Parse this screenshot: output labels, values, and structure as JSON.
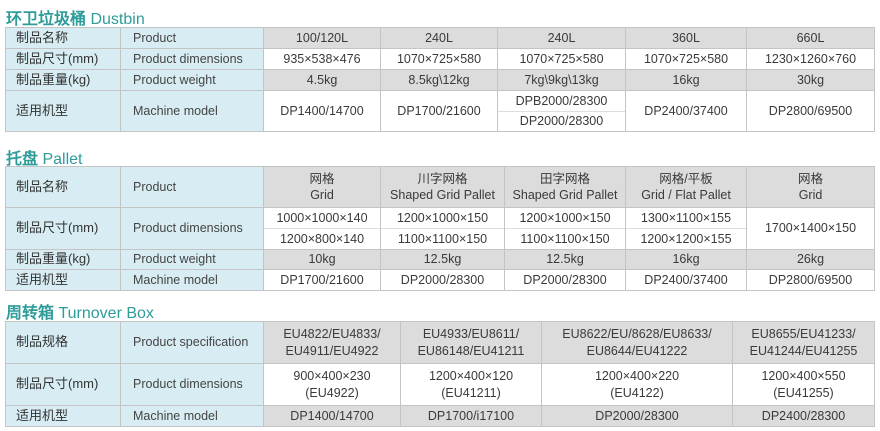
{
  "sections": [
    {
      "title_zh": "环卫垃圾桶",
      "title_en": "Dustbin",
      "rows": [
        {
          "zh": "制品名称",
          "en": "Product",
          "cells": [
            {
              "lines": [
                "100/120L"
              ]
            },
            {
              "lines": [
                "240L"
              ]
            },
            {
              "lines": [
                "240L"
              ]
            },
            {
              "lines": [
                "360L"
              ]
            },
            {
              "lines": [
                "660L"
              ]
            }
          ]
        },
        {
          "zh": "制品尺寸(mm)",
          "en": "Product dimensions",
          "cells": [
            {
              "lines": [
                "935×538×476"
              ]
            },
            {
              "lines": [
                "1070×725×580"
              ]
            },
            {
              "lines": [
                "1070×725×580"
              ]
            },
            {
              "lines": [
                "1070×725×580"
              ]
            },
            {
              "lines": [
                "1230×1260×760"
              ]
            }
          ]
        },
        {
          "zh": "制品重量(kg)",
          "en": "Product weight",
          "cells": [
            {
              "lines": [
                "4.5kg"
              ]
            },
            {
              "lines": [
                "8.5kg\\12kg"
              ]
            },
            {
              "lines": [
                "7kg\\9kg\\13kg"
              ]
            },
            {
              "lines": [
                "16kg"
              ]
            },
            {
              "lines": [
                "30kg"
              ]
            }
          ]
        },
        {
          "zh": "适用机型",
          "en": "Machine model",
          "cells": [
            {
              "lines": [
                "DP1400/14700"
              ]
            },
            {
              "lines": [
                "DP1700/21600"
              ]
            },
            {
              "lines": [
                "DPB2000/28300",
                "DP2000/28300"
              ],
              "divided": true
            },
            {
              "lines": [
                "DP2400/37400"
              ]
            },
            {
              "lines": [
                "DP2800/69500"
              ]
            }
          ]
        }
      ]
    },
    {
      "title_zh": "托盘",
      "title_en": "Pallet",
      "rows": [
        {
          "zh": "制品名称",
          "en": "Product",
          "cells": [
            {
              "lines": [
                "网格",
                "Grid"
              ]
            },
            {
              "lines": [
                "川字网格",
                "Shaped Grid Pallet"
              ]
            },
            {
              "lines": [
                "田字网格",
                "Shaped Grid Pallet"
              ]
            },
            {
              "lines": [
                "网格/平板",
                "Grid / Flat Pallet"
              ]
            },
            {
              "lines": [
                "网格",
                "Grid"
              ]
            }
          ]
        },
        {
          "zh": "制品尺寸(mm)",
          "en": "Product dimensions",
          "cells": [
            {
              "lines": [
                "1000×1000×140",
                "1200×800×140"
              ],
              "divided": true
            },
            {
              "lines": [
                "1200×1000×150",
                "1100×1100×150"
              ],
              "divided": true
            },
            {
              "lines": [
                "1200×1000×150",
                "1100×1100×150"
              ],
              "divided": true
            },
            {
              "lines": [
                "1300×1100×155",
                "1200×1200×155"
              ],
              "divided": true
            },
            {
              "lines": [
                "1700×1400×150"
              ]
            }
          ]
        },
        {
          "zh": "制品重量(kg)",
          "en": "Product weight",
          "cells": [
            {
              "lines": [
                "10kg"
              ]
            },
            {
              "lines": [
                "12.5kg"
              ]
            },
            {
              "lines": [
                "12.5kg"
              ]
            },
            {
              "lines": [
                "16kg"
              ]
            },
            {
              "lines": [
                "26kg"
              ]
            }
          ]
        },
        {
          "zh": "适用机型",
          "en": "Machine model",
          "cells": [
            {
              "lines": [
                "DP1700/21600"
              ]
            },
            {
              "lines": [
                "DP2000/28300"
              ]
            },
            {
              "lines": [
                "DP2000/28300"
              ]
            },
            {
              "lines": [
                "DP2400/37400"
              ]
            },
            {
              "lines": [
                "DP2800/69500"
              ]
            }
          ]
        }
      ]
    },
    {
      "title_zh": "周转箱",
      "title_en": "Turnover Box",
      "rows": [
        {
          "zh": "制品规格",
          "en": "Product specification",
          "cells": [
            {
              "lines": [
                "EU4822/EU4833/",
                "EU4911/EU4922"
              ]
            },
            {
              "lines": [
                "EU4933/EU8611/",
                "EU86148/EU41211"
              ]
            },
            {
              "lines": [
                "EU8622/EU/8628/EU8633/",
                "EU8644/EU41222"
              ]
            },
            {
              "lines": [
                "EU8655/EU41233/",
                "EU41244/EU41255"
              ]
            }
          ]
        },
        {
          "zh": "制品尺寸(mm)",
          "en": "Product dimensions",
          "cells": [
            {
              "lines": [
                "900×400×230",
                "(EU4922)"
              ]
            },
            {
              "lines": [
                "1200×400×120",
                "(EU41211)"
              ]
            },
            {
              "lines": [
                "1200×400×220",
                "(EU4122)"
              ]
            },
            {
              "lines": [
                "1200×400×550",
                "(EU41255)"
              ]
            }
          ]
        },
        {
          "zh": "适用机型",
          "en": "Machine model",
          "cells": [
            {
              "lines": [
                "DP1400/14700"
              ]
            },
            {
              "lines": [
                "DP1700/i17100"
              ]
            },
            {
              "lines": [
                "DP2000/28300"
              ]
            },
            {
              "lines": [
                "DP2400/28300"
              ]
            }
          ]
        }
      ]
    }
  ]
}
